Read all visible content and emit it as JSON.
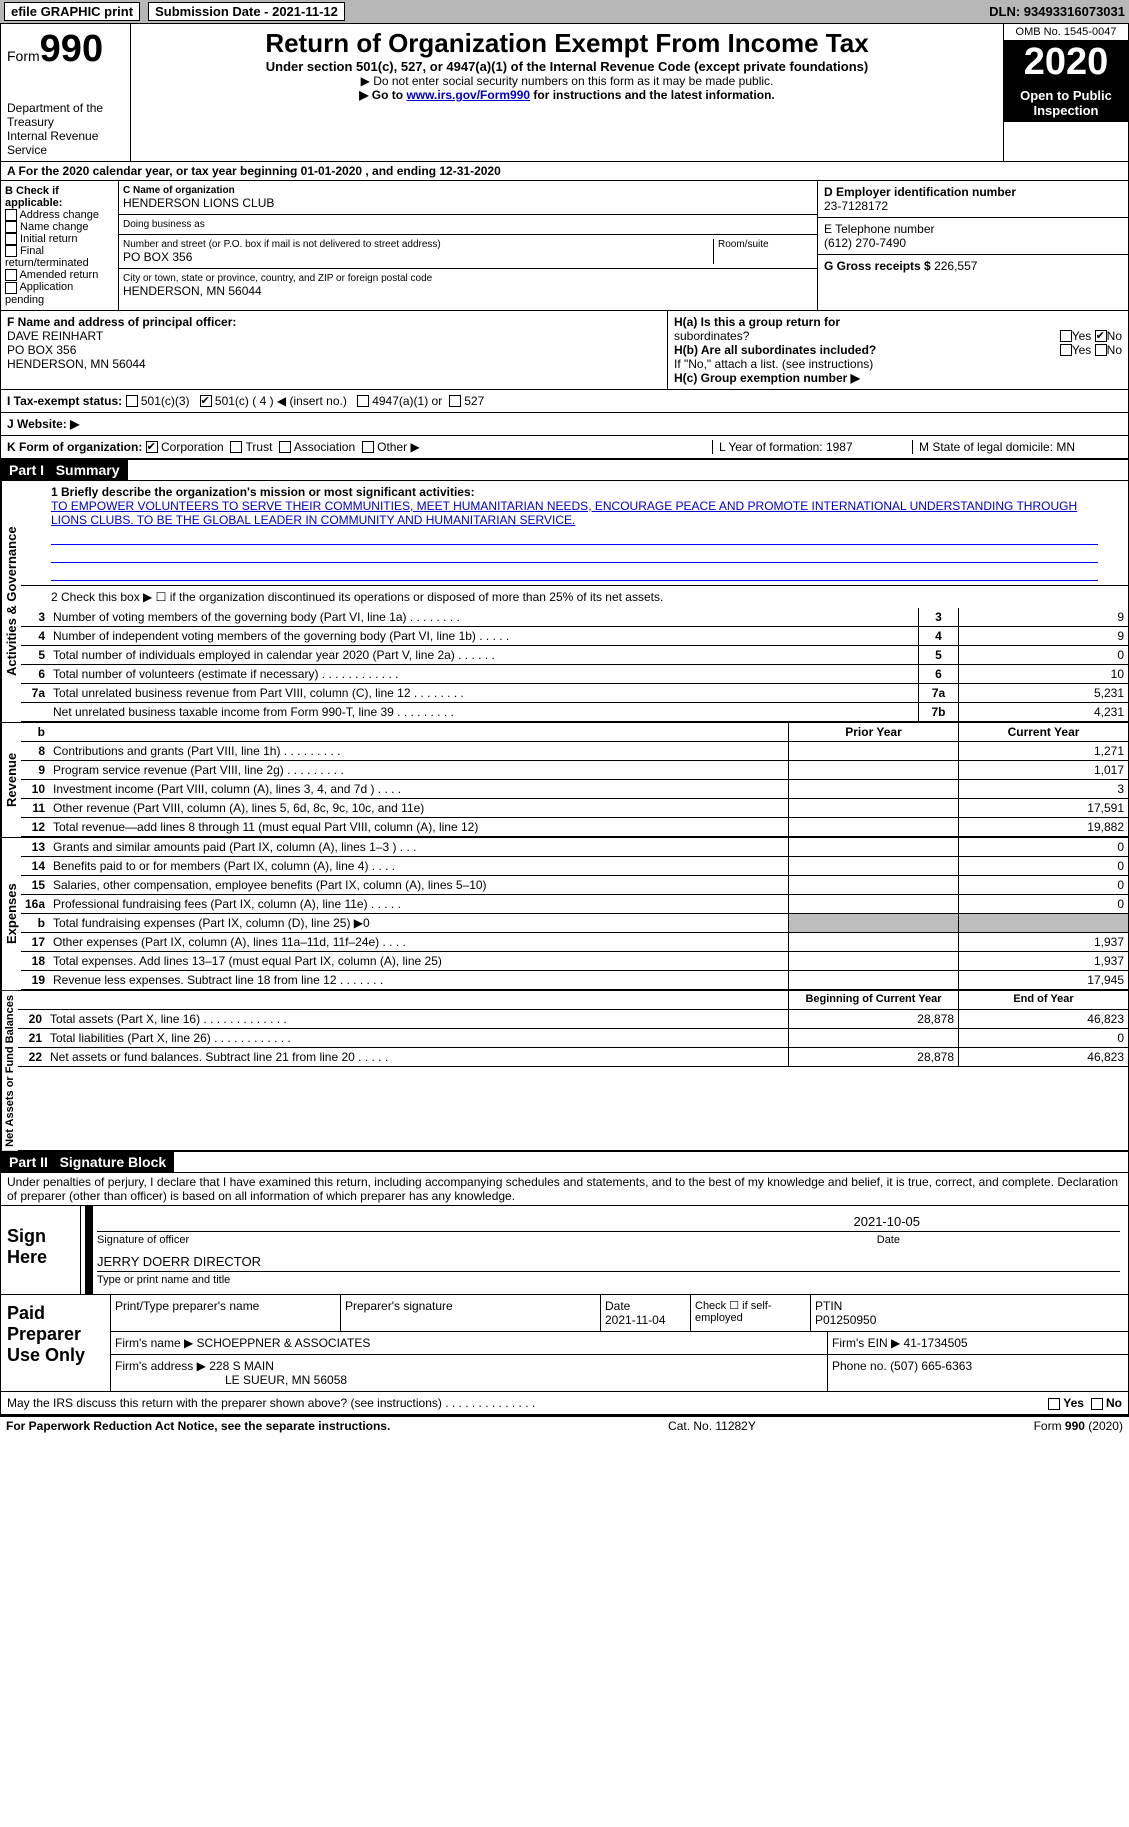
{
  "topbar": {
    "efile": "efile GRAPHIC print",
    "sub_label": "Submission Date - 2021-11-12",
    "dln": "DLN: 93493316073031"
  },
  "head": {
    "form_small": "Form",
    "form_big": "990",
    "dept": "Department of the Treasury\nInternal Revenue Service",
    "title": "Return of Organization Exempt From Income Tax",
    "sub1": "Under section 501(c), 527, or 4947(a)(1) of the Internal Revenue Code (except private foundations)",
    "sub2": "▶ Do not enter social security numbers on this form as it may be made public.",
    "sub3_pre": "▶ Go to ",
    "sub3_link": "www.irs.gov/Form990",
    "sub3_post": " for instructions and the latest information.",
    "omb": "OMB No. 1545-0047",
    "year": "2020",
    "open": "Open to Public Inspection"
  },
  "lineA": "A For the 2020 calendar year, or tax year beginning 01-01-2020   , and ending 12-31-2020",
  "B": {
    "head": "B Check if applicable:",
    "opts": [
      "Address change",
      "Name change",
      "Initial return",
      "Final return/terminated",
      "Amended return",
      "Application pending"
    ]
  },
  "C": {
    "label": "C Name of organization",
    "name": "HENDERSON LIONS CLUB",
    "dba_label": "Doing business as",
    "dba": "",
    "addr_label": "Number and street (or P.O. box if mail is not delivered to street address)",
    "room_label": "Room/suite",
    "addr": "PO BOX 356",
    "city_label": "City or town, state or province, country, and ZIP or foreign postal code",
    "city": "HENDERSON, MN  56044"
  },
  "right": {
    "D_label": "D Employer identification number",
    "D": "23-7128172",
    "E_label": "E Telephone number",
    "E": "(612) 270-7490",
    "G_label": "G Gross receipts $",
    "G": "226,557"
  },
  "F": {
    "label": "F  Name and address of principal officer:",
    "name": "DAVE REINHART",
    "addr": "PO BOX 356",
    "city": "HENDERSON, MN  56044"
  },
  "H": {
    "a_label": "H(a)  Is this a group return for",
    "a_sub": "subordinates?",
    "a_yes": "Yes",
    "a_no": "No",
    "b_label": "H(b)  Are all subordinates included?",
    "b_yes": "Yes",
    "b_no": "No",
    "b_note": "If \"No,\" attach a list. (see instructions)",
    "c_label": "H(c)  Group exemption number ▶"
  },
  "I": {
    "label": "I   Tax-exempt status:",
    "o1": "501(c)(3)",
    "o2": "501(c) ( 4 ) ◀ (insert no.)",
    "o3": "4947(a)(1) or",
    "o4": "527"
  },
  "J": {
    "label": "J   Website: ▶"
  },
  "K": {
    "label": "K Form of organization:",
    "o1": "Corporation",
    "o2": "Trust",
    "o3": "Association",
    "o4": "Other ▶",
    "L": "L Year of formation: 1987",
    "M": "M State of legal domicile: MN"
  },
  "parts": {
    "p1": "Part I",
    "p1t": "Summary",
    "p2": "Part II",
    "p2t": "Signature Block"
  },
  "summary": {
    "l1": "1  Briefly describe the organization's mission or most significant activities:",
    "mission": "TO EMPOWER VOLUNTEERS TO SERVE THEIR COMMUNITIES, MEET HUMANITARIAN NEEDS, ENCOURAGE PEACE AND PROMOTE INTERNATIONAL UNDERSTANDING THROUGH LIONS CLUBS. TO BE THE GLOBAL LEADER IN COMMUNITY AND HUMANITARIAN SERVICE.",
    "l2": "2   Check this box ▶ ☐  if the organization discontinued its operations or disposed of more than 25% of its net assets.",
    "lines_gov": [
      {
        "n": "3",
        "d": "Number of voting members of the governing body (Part VI, line 1a)   .    .    .    .    .    .    .    .",
        "ln": "3",
        "v": "9"
      },
      {
        "n": "4",
        "d": "Number of independent voting members of the governing body (Part VI, line 1b)    .    .    .    .    .",
        "ln": "4",
        "v": "9"
      },
      {
        "n": "5",
        "d": "Total number of individuals employed in calendar year 2020 (Part V, line 2a)    .    .    .    .    .    .",
        "ln": "5",
        "v": "0"
      },
      {
        "n": "6",
        "d": "Total number of volunteers (estimate if necessary)    .    .    .    .    .    .    .    .    .    .    .    .",
        "ln": "6",
        "v": "10"
      },
      {
        "n": "7a",
        "d": "Total unrelated business revenue from Part VIII, column (C), line 12   .    .    .    .    .    .    .    .",
        "ln": "7a",
        "v": "5,231"
      },
      {
        "n": "",
        "d": "Net unrelated business taxable income from Form 990-T, line 39    .    .    .    .    .    .    .    .    .",
        "ln": "7b",
        "v": "4,231"
      }
    ],
    "hdr_b": "b",
    "hdr_prior": "Prior Year",
    "hdr_curr": "Current Year",
    "rev": [
      {
        "n": "8",
        "d": "Contributions and grants (Part VIII, line 1h)    .    .    .    .    .    .    .    .    .",
        "p": "",
        "c": "1,271"
      },
      {
        "n": "9",
        "d": "Program service revenue (Part VIII, line 2g)    .    .    .    .    .    .    .    .    .",
        "p": "",
        "c": "1,017"
      },
      {
        "n": "10",
        "d": "Investment income (Part VIII, column (A), lines 3, 4, and 7d )    .    .    .    .",
        "p": "",
        "c": "3"
      },
      {
        "n": "11",
        "d": "Other revenue (Part VIII, column (A), lines 5, 6d, 8c, 9c, 10c, and 11e)",
        "p": "",
        "c": "17,591"
      },
      {
        "n": "12",
        "d": "Total revenue—add lines 8 through 11 (must equal Part VIII, column (A), line 12)",
        "p": "",
        "c": "19,882"
      }
    ],
    "exp": [
      {
        "n": "13",
        "d": "Grants and similar amounts paid (Part IX, column (A), lines 1–3 )   .    .    .",
        "p": "",
        "c": "0"
      },
      {
        "n": "14",
        "d": "Benefits paid to or for members (Part IX, column (A), line 4)    .    .    .    .",
        "p": "",
        "c": "0"
      },
      {
        "n": "15",
        "d": "Salaries, other compensation, employee benefits (Part IX, column (A), lines 5–10)",
        "p": "",
        "c": "0"
      },
      {
        "n": "16a",
        "d": "Professional fundraising fees (Part IX, column (A), line 11e)    .    .    .    .    .",
        "p": "",
        "c": "0"
      },
      {
        "n": "b",
        "d": "Total fundraising expenses (Part IX, column (D), line 25) ▶0",
        "p": "grey",
        "c": "grey"
      },
      {
        "n": "17",
        "d": "Other expenses (Part IX, column (A), lines 11a–11d, 11f–24e)    .    .    .    .",
        "p": "",
        "c": "1,937"
      },
      {
        "n": "18",
        "d": "Total expenses. Add lines 13–17 (must equal Part IX, column (A), line 25)",
        "p": "",
        "c": "1,937"
      },
      {
        "n": "19",
        "d": "Revenue less expenses. Subtract line 18 from line 12    .    .    .    .    .    .    .",
        "p": "",
        "c": "17,945"
      }
    ],
    "hdr_boy": "Beginning of Current Year",
    "hdr_eoy": "End of Year",
    "net": [
      {
        "n": "20",
        "d": "Total assets (Part X, line 16)   .    .    .    .    .    .    .    .    .    .    .    .    .",
        "p": "28,878",
        "c": "46,823"
      },
      {
        "n": "21",
        "d": "Total liabilities (Part X, line 26)    .    .    .    .    .    .    .    .    .    .    .    .",
        "p": "",
        "c": "0"
      },
      {
        "n": "22",
        "d": "Net assets or fund balances. Subtract line 21 from line 20    .    .    .    .    .",
        "p": "28,878",
        "c": "46,823"
      }
    ],
    "side": {
      "gov": "Activities & Governance",
      "rev": "Revenue",
      "exp": "Expenses",
      "net": "Net Assets or Fund Balances"
    }
  },
  "sig": {
    "pen": "Under penalties of perjury, I declare that I have examined this return, including accompanying schedules and statements, and to the best of my knowledge and belief, it is true, correct, and complete. Declaration of preparer (other than officer) is based on all information of which preparer has any knowledge.",
    "sign_here": "Sign Here",
    "date": "2021-10-05",
    "sig_of_officer": "Signature of officer",
    "date_lbl": "Date",
    "name": "JERRY DOERR  DIRECTOR",
    "type_name": "Type or print name and title"
  },
  "paid": {
    "title": "Paid Preparer Use Only",
    "h1": "Print/Type preparer's name",
    "h2": "Preparer's signature",
    "h3": "Date",
    "h3v": "2021-11-04",
    "h4": "Check ☐ if self-employed",
    "h5": "PTIN",
    "h5v": "P01250950",
    "firm_name_lbl": "Firm's name    ▶",
    "firm_name": "SCHOEPPNER & ASSOCIATES",
    "firm_ein_lbl": "Firm's EIN ▶",
    "firm_ein": "41-1734505",
    "firm_addr_lbl": "Firm's address ▶",
    "firm_addr": "228 S MAIN",
    "firm_city": "LE SUEUR, MN  56058",
    "phone_lbl": "Phone no.",
    "phone": "(507) 665-6363"
  },
  "may": {
    "q": "May the IRS discuss this return with the preparer shown above? (see instructions)    .    .    .    .    .    .    .    .    .    .    .    .    .    .",
    "yes": "Yes",
    "no": "No"
  },
  "footer": {
    "l": "For Paperwork Reduction Act Notice, see the separate instructions.",
    "m": "Cat. No. 11282Y",
    "r": "Form 990 (2020)"
  }
}
